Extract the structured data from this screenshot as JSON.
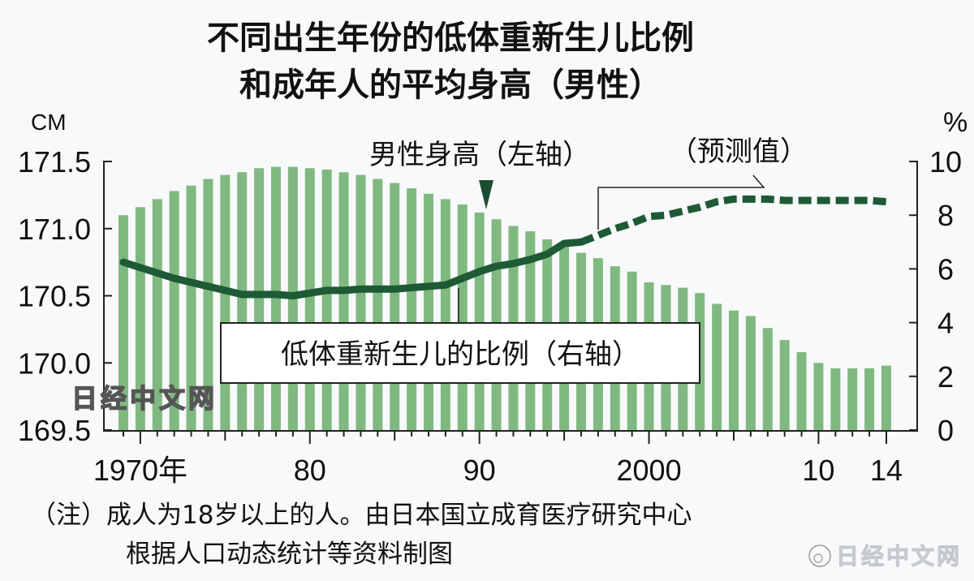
{
  "chart_data": {
    "type": "bar+line",
    "title": [
      "不同出生年份的低体重新生儿比例",
      "和成年人的平均身高（男性）"
    ],
    "left_axis": {
      "unit": "CM",
      "ylim": [
        169.5,
        171.5
      ],
      "ticks": [
        "171.5",
        "171.0",
        "170.5",
        "170.0",
        "169.5"
      ],
      "tick_values": [
        171.5,
        171.0,
        170.5,
        170.0,
        169.5
      ]
    },
    "right_axis": {
      "unit": "%",
      "ylim": [
        0,
        10
      ],
      "ticks": [
        "10",
        "8",
        "6",
        "4",
        "2",
        "0"
      ],
      "tick_values": [
        10,
        8,
        6,
        4,
        2,
        0
      ]
    },
    "x_ticks": [
      {
        "year": 1970,
        "label": "1970年"
      },
      {
        "year": 1980,
        "label": "80"
      },
      {
        "year": 1990,
        "label": "90"
      },
      {
        "year": 2000,
        "label": "2000"
      },
      {
        "year": 2010,
        "label": "10"
      },
      {
        "year": 2014,
        "label": "14"
      }
    ],
    "years": [
      1969,
      1970,
      1971,
      1972,
      1973,
      1974,
      1975,
      1976,
      1977,
      1978,
      1979,
      1980,
      1981,
      1982,
      1983,
      1984,
      1985,
      1986,
      1987,
      1988,
      1989,
      1990,
      1991,
      1992,
      1993,
      1994,
      1995,
      1996,
      1997,
      1998,
      1999,
      2000,
      2001,
      2002,
      2003,
      2004,
      2005,
      2006,
      2007,
      2008,
      2009,
      2010,
      2011,
      2012,
      2013,
      2014
    ],
    "series": [
      {
        "name": "男性身高（左轴）",
        "type": "bar",
        "axis": "left",
        "color": "#80b980",
        "values": [
          171.1,
          171.16,
          171.22,
          171.28,
          171.32,
          171.37,
          171.4,
          171.42,
          171.45,
          171.46,
          171.46,
          171.45,
          171.44,
          171.42,
          171.4,
          171.37,
          171.34,
          171.3,
          171.26,
          171.22,
          171.18,
          171.12,
          171.07,
          171.02,
          170.98,
          170.92,
          170.88,
          170.82,
          170.78,
          170.72,
          170.68,
          170.6,
          170.58,
          170.56,
          170.52,
          170.44,
          170.39,
          170.35,
          170.26,
          170.17,
          170.08,
          170.0,
          169.96,
          169.96,
          169.96,
          169.98
        ]
      },
      {
        "name": "低体重新生儿的比例（右轴）",
        "type": "line",
        "axis": "right",
        "color": "#1d5a35",
        "forecast_from": 1996,
        "values": [
          6.25,
          6.05,
          5.85,
          5.65,
          5.5,
          5.35,
          5.2,
          5.05,
          5.05,
          5.05,
          5.0,
          5.1,
          5.2,
          5.2,
          5.25,
          5.25,
          5.25,
          5.3,
          5.35,
          5.4,
          5.65,
          5.9,
          6.1,
          6.2,
          6.35,
          6.55,
          6.95,
          7.0,
          7.25,
          7.5,
          7.7,
          7.95,
          8.0,
          8.15,
          8.3,
          8.5,
          8.6,
          8.6,
          8.6,
          8.55,
          8.55,
          8.55,
          8.55,
          8.55,
          8.55,
          8.5
        ]
      }
    ],
    "annotations": {
      "height_label": "男性身高（左轴）",
      "forecast_label": "（预测值）",
      "lbw_label": "低体重新生儿的比例（右轴）"
    }
  },
  "watermark": "日经中文网",
  "corner_watermark": "日经中文网",
  "notes": [
    "（注）成人为18岁以上的人。由日本国立成育医疗研究中心",
    "根据人口动态统计等资料制图"
  ]
}
